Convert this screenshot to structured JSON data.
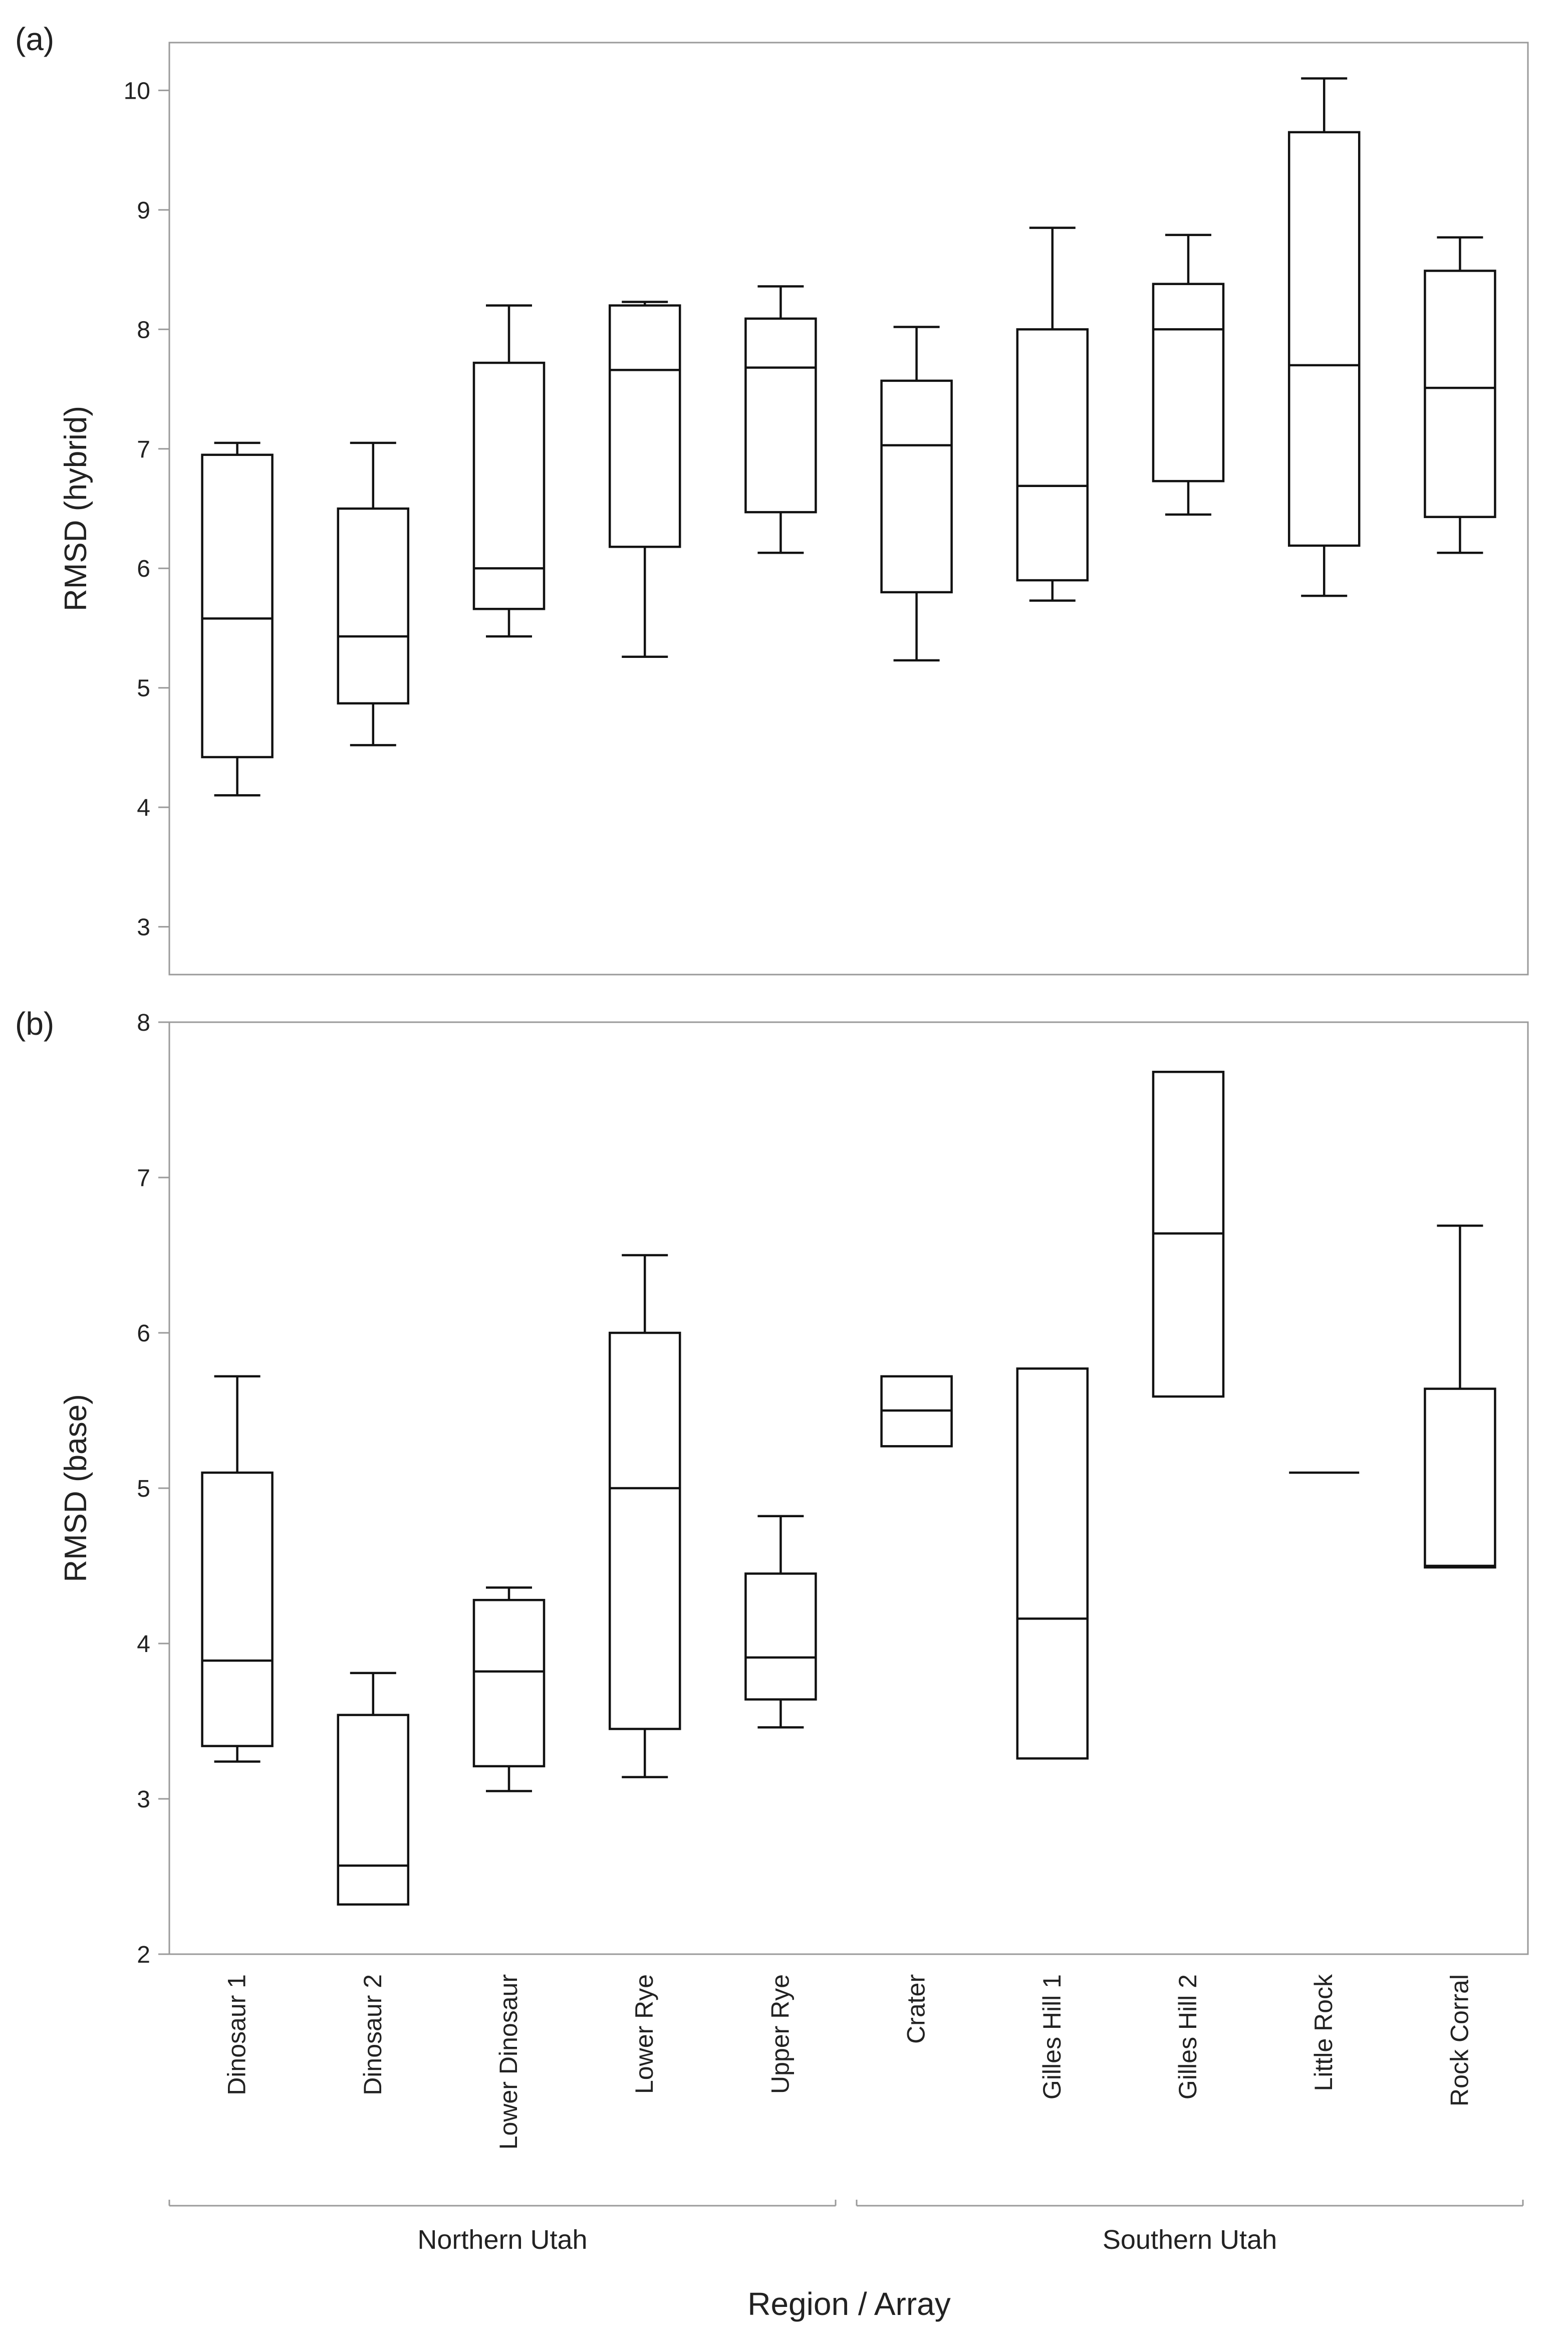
{
  "chart_data": [
    {
      "type": "boxplot",
      "panel_label": "(a)",
      "ylabel": "RMSD (hybrid)",
      "ylim": [
        2.6,
        10.4
      ],
      "yticks": [
        3,
        4,
        5,
        6,
        7,
        8,
        9,
        10
      ],
      "grid": false,
      "series": [
        {
          "name": "Dinosaur 1",
          "min": 4.1,
          "q1": 4.42,
          "median": 5.58,
          "q3": 6.95,
          "max": 7.05
        },
        {
          "name": "Dinosaur 2",
          "min": 4.52,
          "q1": 4.87,
          "median": 5.43,
          "q3": 6.5,
          "max": 7.05
        },
        {
          "name": "Lower Dinosaur",
          "min": 5.43,
          "q1": 5.66,
          "median": 6.0,
          "q3": 7.72,
          "max": 8.2
        },
        {
          "name": "Lower Rye",
          "min": 5.26,
          "q1": 6.18,
          "median": 7.66,
          "q3": 8.2,
          "max": 8.23
        },
        {
          "name": "Upper Rye",
          "min": 6.13,
          "q1": 6.47,
          "median": 7.68,
          "q3": 8.09,
          "max": 8.36
        },
        {
          "name": "Crater",
          "min": 5.23,
          "q1": 5.8,
          "median": 7.03,
          "q3": 7.57,
          "max": 8.02
        },
        {
          "name": "Gilles Hill 1",
          "min": 5.73,
          "q1": 5.9,
          "median": 6.69,
          "q3": 8.0,
          "max": 8.85
        },
        {
          "name": "Gilles Hill 2",
          "min": 6.45,
          "q1": 6.73,
          "median": 8.0,
          "q3": 8.38,
          "max": 8.79
        },
        {
          "name": "Little Rock",
          "min": 5.77,
          "q1": 6.19,
          "median": 7.7,
          "q3": 9.65,
          "max": 10.1
        },
        {
          "name": "Rock Corral",
          "min": 6.13,
          "q1": 6.43,
          "median": 7.51,
          "q3": 8.49,
          "max": 8.77
        }
      ]
    },
    {
      "type": "boxplot",
      "panel_label": "(b)",
      "ylabel": "RMSD (base)",
      "ylim": [
        2.0,
        8.0
      ],
      "yticks": [
        2,
        3,
        4,
        5,
        6,
        7,
        8
      ],
      "grid": false,
      "series": [
        {
          "name": "Dinosaur 1",
          "min": 3.24,
          "q1": 3.34,
          "median": 3.89,
          "q3": 5.1,
          "max": 5.72
        },
        {
          "name": "Dinosaur 2",
          "min": 2.32,
          "q1": 2.32,
          "median": 2.57,
          "q3": 3.54,
          "max": 3.81
        },
        {
          "name": "Lower Dinosaur",
          "min": 3.05,
          "q1": 3.21,
          "median": 3.82,
          "q3": 4.28,
          "max": 4.36
        },
        {
          "name": "Lower Rye",
          "min": 3.14,
          "q1": 3.45,
          "median": 5.0,
          "q3": 6.0,
          "max": 6.5
        },
        {
          "name": "Upper Rye",
          "min": 3.46,
          "q1": 3.64,
          "median": 3.91,
          "q3": 4.45,
          "max": 4.82
        },
        {
          "name": "Crater",
          "min": 5.27,
          "q1": 5.27,
          "median": 5.5,
          "q3": 5.72,
          "max": 5.72
        },
        {
          "name": "Gilles Hill 1",
          "min": 3.26,
          "q1": 3.26,
          "median": 4.16,
          "q3": 5.77,
          "max": 5.77
        },
        {
          "name": "Gilles Hill 2",
          "min": 5.59,
          "q1": 5.59,
          "median": 6.64,
          "q3": 7.68,
          "max": 7.68
        },
        {
          "name": "Little Rock",
          "min": 5.1,
          "q1": 5.1,
          "median": 5.1,
          "q3": 5.1,
          "max": 5.1
        },
        {
          "name": "Rock Corral",
          "min": 4.49,
          "q1": 4.49,
          "median": 4.5,
          "q3": 5.64,
          "max": 6.69
        }
      ]
    }
  ],
  "x_axis": {
    "title": "Region / Array",
    "groups": [
      {
        "label": "Northern Utah",
        "categories": [
          "Dinosaur 1",
          "Dinosaur 2",
          "Lower Dinosaur",
          "Lower Rye",
          "Upper Rye"
        ]
      },
      {
        "label": "Southern Utah",
        "categories": [
          "Crater",
          "Gilles Hill 1",
          "Gilles Hill 2",
          "Little Rock",
          "Rock Corral"
        ]
      }
    ]
  }
}
